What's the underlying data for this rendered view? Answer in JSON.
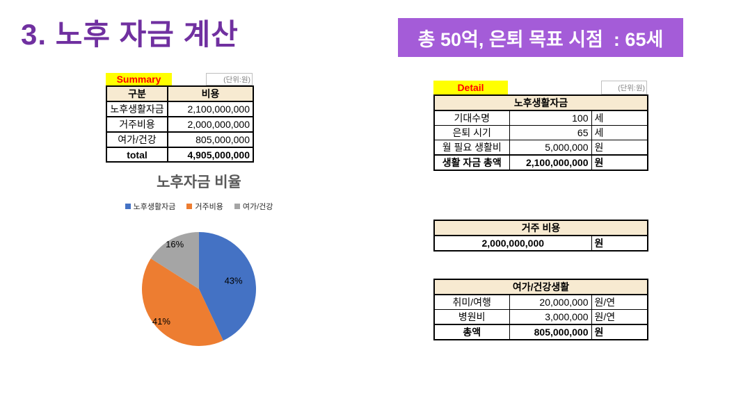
{
  "slide": {
    "title": "3. 노후 자금 계산",
    "banner": "총 50억, 은퇴 목표 시점  : 65세"
  },
  "summary": {
    "tag": "Summary",
    "unit_note": "(단위:원)",
    "columns": [
      "구분",
      "비용"
    ],
    "rows": [
      {
        "label": "노후생활자금",
        "value": "2,100,000,000"
      },
      {
        "label": "거주비용",
        "value": "2,000,000,000"
      },
      {
        "label": "여가/건강",
        "value": "805,000,000"
      }
    ],
    "total": {
      "label": "total",
      "value": "4,905,000,000"
    }
  },
  "chart_data": {
    "type": "pie",
    "title": "노후자금 비율",
    "categories": [
      "노후생활자금",
      "거주비용",
      "여가/건강"
    ],
    "values": [
      43,
      41,
      16
    ],
    "labels": [
      "43%",
      "41%",
      "16%"
    ],
    "colors": [
      "#4472C4",
      "#ED7D31",
      "#A5A5A5"
    ],
    "legend_position": "top",
    "start_angle_deg": 0,
    "direction": "clockwise"
  },
  "detail": {
    "tag": "Detail",
    "unit_note": "(단위:원)",
    "living": {
      "header": "노후생활자금",
      "rows": [
        {
          "label": "기대수명",
          "value": "100",
          "unit": "세"
        },
        {
          "label": "은퇴 시기",
          "value": "65",
          "unit": "세"
        },
        {
          "label": "월 필요 생활비",
          "value": "5,000,000",
          "unit": "원"
        },
        {
          "label": "생활 자금 총액",
          "value": "2,100,000,000",
          "unit": "원"
        }
      ]
    },
    "housing": {
      "header": "거주 비용",
      "value": "2,000,000,000",
      "unit": "원"
    },
    "leisure": {
      "header": "여가/건강생활",
      "rows": [
        {
          "label": "취미/여행",
          "value": "20,000,000",
          "unit": "원/연"
        },
        {
          "label": "병원비",
          "value": "3,000,000",
          "unit": "원/연"
        },
        {
          "label": "총액",
          "value": "805,000,000",
          "unit": "원"
        }
      ]
    }
  }
}
